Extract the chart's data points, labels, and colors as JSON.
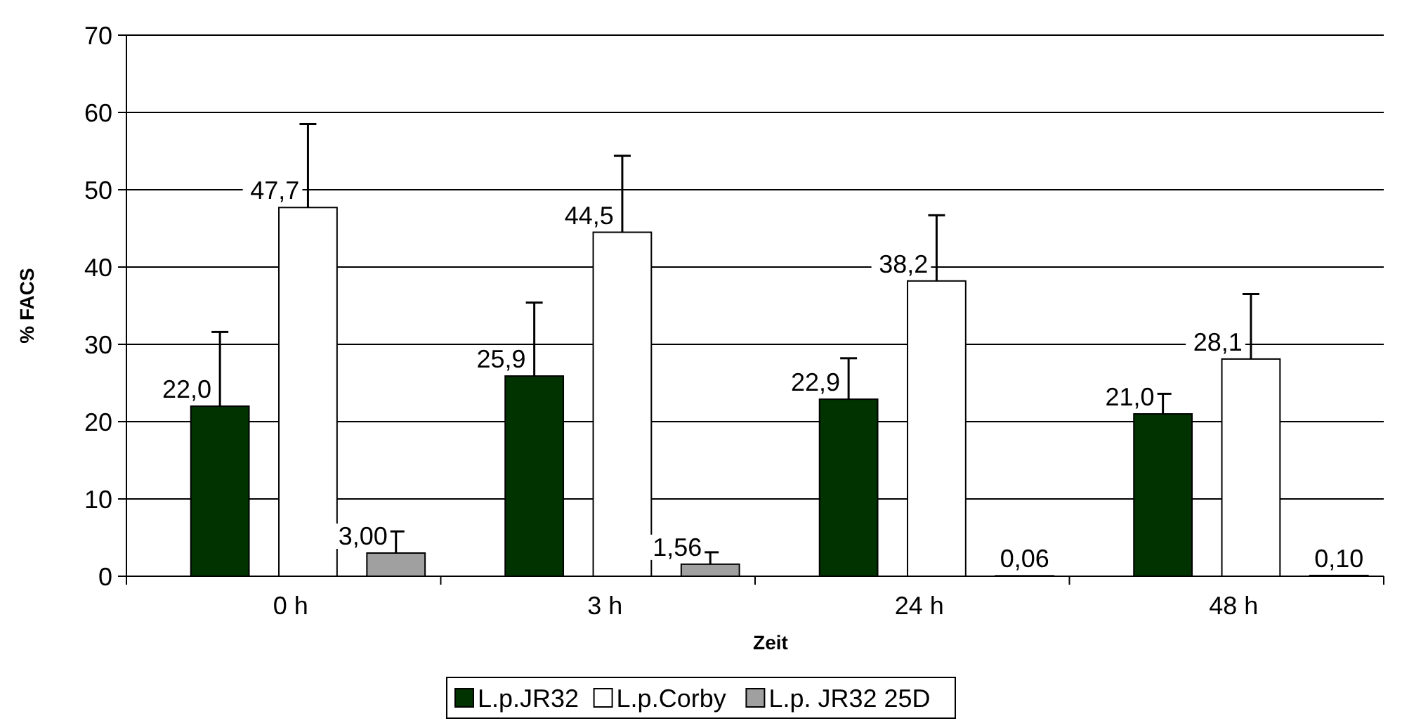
{
  "chart_data": {
    "type": "bar",
    "ylabel": "% FACS",
    "xlabel": "Zeit",
    "categories": [
      "0 h",
      "3 h",
      "24 h",
      "48 h"
    ],
    "series": [
      {
        "name": "L.p.JR32",
        "color": "#003300",
        "values": [
          22.0,
          25.9,
          22.9,
          21.0
        ],
        "value_labels": [
          "22,0",
          "25,9",
          "22,9",
          "21,0"
        ],
        "errors": [
          [
            22.0,
            31.6
          ],
          [
            25.9,
            35.4
          ],
          [
            22.9,
            28.2
          ],
          [
            21.0,
            23.6
          ]
        ]
      },
      {
        "name": "L.p.Corby",
        "color": "#ffffff",
        "values": [
          47.7,
          44.5,
          38.2,
          28.1
        ],
        "value_labels": [
          "47,7",
          "44,5",
          "38,2",
          "28,1"
        ],
        "errors": [
          [
            47.7,
            58.5
          ],
          [
            44.5,
            54.4
          ],
          [
            38.2,
            46.7
          ],
          [
            28.1,
            36.5
          ]
        ]
      },
      {
        "name": "L.p. JR32 25D",
        "color": "#a0a0a0",
        "values": [
          3.0,
          1.56,
          0.06,
          0.1
        ],
        "value_labels": [
          "3,00",
          "1,56",
          "0,06",
          "0,10"
        ],
        "errors": [
          [
            3.0,
            5.8
          ],
          [
            1.56,
            3.1
          ],
          null,
          null
        ]
      }
    ],
    "ylim": [
      0,
      70
    ],
    "yticks": [
      0,
      10,
      20,
      30,
      40,
      50,
      60,
      70
    ],
    "grid": "y",
    "legend": "bottom"
  }
}
